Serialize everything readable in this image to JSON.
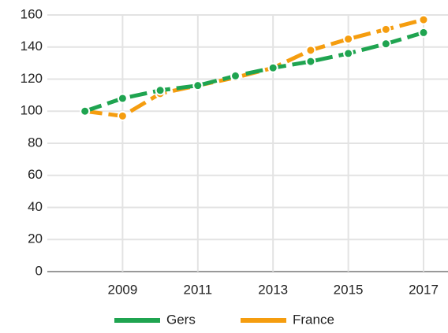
{
  "chart_data": {
    "type": "line",
    "x": [
      2008,
      2009,
      2010,
      2011,
      2012,
      2013,
      2014,
      2015,
      2016,
      2017
    ],
    "series": [
      {
        "name": "France",
        "color": "#f59d0f",
        "values": [
          100,
          97,
          111,
          116,
          121,
          127,
          138,
          145,
          151,
          157
        ]
      },
      {
        "name": "Gers",
        "color": "#1fa450",
        "values": [
          100,
          108,
          113,
          116,
          122,
          127,
          131,
          136,
          142,
          149
        ]
      }
    ],
    "legend_order": [
      "Gers",
      "France"
    ],
    "xlim": [
      2007,
      2017.65
    ],
    "xticks": [
      2009,
      2011,
      2013,
      2015,
      2017
    ],
    "ylim": [
      0,
      160
    ],
    "yticks": [
      0,
      20,
      40,
      60,
      80,
      100,
      120,
      140,
      160
    ],
    "grid": true,
    "legend": "bottom"
  }
}
